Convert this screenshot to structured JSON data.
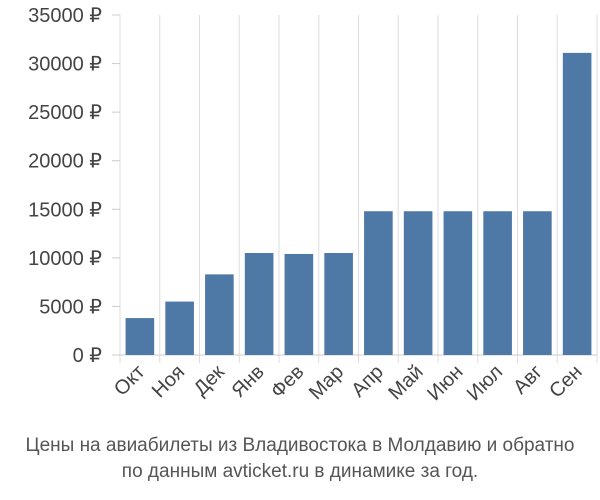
{
  "chart_data": {
    "type": "bar",
    "categories": [
      "Окт",
      "Ноя",
      "Дек",
      "Янв",
      "Фев",
      "Мар",
      "Апр",
      "Май",
      "Июн",
      "Июл",
      "Авг",
      "Сен"
    ],
    "values": [
      3800,
      5500,
      8300,
      10500,
      10400,
      10500,
      14800,
      14800,
      14800,
      14800,
      14800,
      31100
    ],
    "yticks": [
      "0 ₽",
      "5000 ₽",
      "10000 ₽",
      "15000 ₽",
      "20000 ₽",
      "25000 ₽",
      "30000 ₽",
      "35000 ₽"
    ],
    "ylim": [
      0,
      35000
    ],
    "grid": "vertical",
    "bar_color": "#4e79a7",
    "caption_line1": "Цены на авиабилеты из Владивостока в Молдавию и обратно",
    "caption_line2": "по данным avticket.ru в динамике за год."
  }
}
